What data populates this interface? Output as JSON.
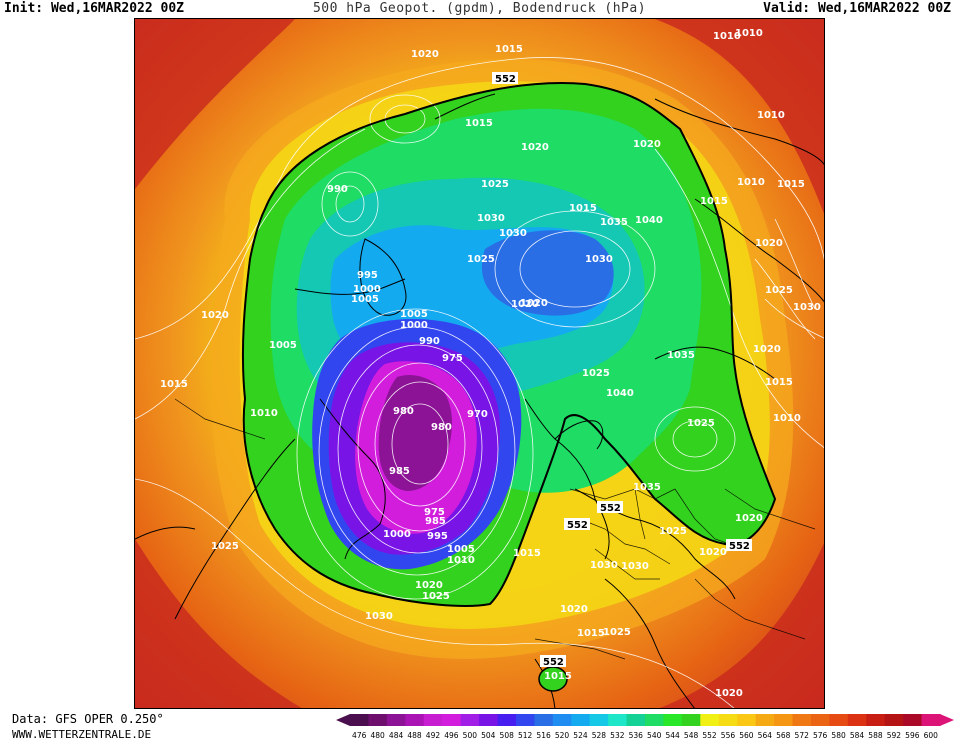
{
  "header": {
    "init": "Init: Wed,16MAR2022 00Z",
    "title": "500 hPa Geopot. (gpdm), Bodendruck (hPa)",
    "valid": "Valid: Wed,16MAR2022 00Z"
  },
  "footer": {
    "data_source": "Data: GFS OPER 0.250°",
    "website": "WWW.WETTERZENTRALE.DE"
  },
  "legend": {
    "values": [
      "476",
      "480",
      "484",
      "488",
      "492",
      "496",
      "500",
      "504",
      "508",
      "512",
      "516",
      "520",
      "524",
      "528",
      "532",
      "536",
      "540",
      "544",
      "548",
      "552",
      "556",
      "560",
      "564",
      "568",
      "572",
      "576",
      "580",
      "584",
      "588",
      "592",
      "596",
      "600"
    ],
    "colors": [
      "#4b0f4f",
      "#6e0f6e",
      "#8c1396",
      "#aa14b4",
      "#c81ed2",
      "#d21edc",
      "#a01ee6",
      "#7814e6",
      "#461ef0",
      "#3246f0",
      "#2a6ee6",
      "#1e8cf0",
      "#14aaf0",
      "#14c8e6",
      "#1ee6c8",
      "#14d296",
      "#1edc64",
      "#28e628",
      "#32d21e",
      "#f0f014",
      "#f5dc14",
      "#fac814",
      "#f5aa14",
      "#f59614",
      "#f07814",
      "#eb6414",
      "#e64b14",
      "#dc3214",
      "#c81e14",
      "#b41414",
      "#aa0a28",
      "#dc1478"
    ]
  },
  "map_labels": {
    "isobars": [
      {
        "t": "1020"
      },
      {
        "t": "1015"
      },
      {
        "t": "1010"
      },
      {
        "t": "1015"
      },
      {
        "t": "1020"
      },
      {
        "t": "1025"
      },
      {
        "t": "1015"
      },
      {
        "t": "1010"
      },
      {
        "t": "1015"
      },
      {
        "t": "1010"
      },
      {
        "t": "1020"
      },
      {
        "t": "1025"
      },
      {
        "t": "1030"
      },
      {
        "t": "1020"
      },
      {
        "t": "1015"
      },
      {
        "t": "1010"
      },
      {
        "t": "1020"
      },
      {
        "t": "1015"
      },
      {
        "t": "1010"
      },
      {
        "t": "1020"
      },
      {
        "t": "1025"
      },
      {
        "t": "1030"
      },
      {
        "t": "990"
      },
      {
        "t": "995"
      },
      {
        "t": "1000"
      },
      {
        "t": "1005"
      },
      {
        "t": "1005"
      },
      {
        "t": "1005"
      },
      {
        "t": "1000"
      },
      {
        "t": "990"
      },
      {
        "t": "975"
      },
      {
        "t": "980"
      },
      {
        "t": "970"
      },
      {
        "t": "980"
      },
      {
        "t": "985"
      },
      {
        "t": "975"
      },
      {
        "t": "985"
      },
      {
        "t": "1000"
      },
      {
        "t": "995"
      },
      {
        "t": "1005"
      },
      {
        "t": "1010"
      },
      {
        "t": "1015"
      },
      {
        "t": "1020"
      },
      {
        "t": "1025"
      },
      {
        "t": "1030"
      },
      {
        "t": "1020"
      },
      {
        "t": "1025"
      },
      {
        "t": "1030"
      },
      {
        "t": "1025"
      },
      {
        "t": "1020"
      },
      {
        "t": "1030"
      },
      {
        "t": "1015"
      },
      {
        "t": "1035"
      },
      {
        "t": "1040"
      },
      {
        "t": "1030"
      },
      {
        "t": "1025"
      },
      {
        "t": "1035"
      },
      {
        "t": "1040"
      },
      {
        "t": "1025"
      },
      {
        "t": "1035"
      },
      {
        "t": "1020"
      },
      {
        "t": "1030"
      },
      {
        "t": "1020"
      },
      {
        "t": "1015"
      },
      {
        "t": "1025"
      },
      {
        "t": "1020"
      },
      {
        "t": "1020"
      },
      {
        "t": "1010"
      },
      {
        "t": "1015"
      }
    ],
    "contour_552": [
      "552",
      "552",
      "552",
      "552",
      "552"
    ]
  }
}
